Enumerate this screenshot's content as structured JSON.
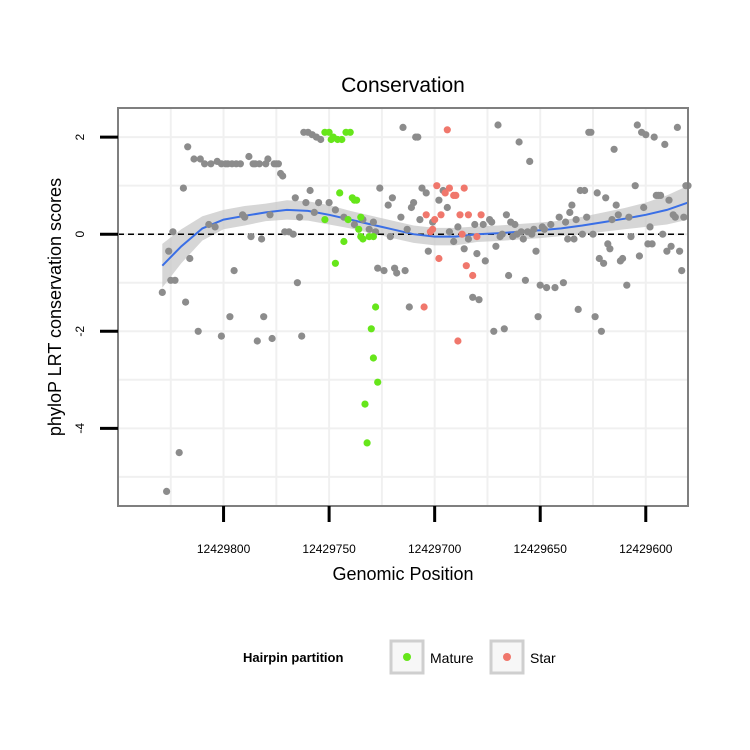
{
  "chart_data": {
    "type": "scatter",
    "title": "Conservation",
    "xlabel": "Genomic Position",
    "ylabel": "phyloP LRT conservation scores",
    "x_reversed": true,
    "xlim": [
      12429580,
      12429850
    ],
    "ylim": [
      -5.6,
      2.6
    ],
    "x_ticks": [
      12429800,
      12429750,
      12429700,
      12429650,
      12429600
    ],
    "x_tick_labels": [
      "12429800",
      "12429750",
      "12429700",
      "12429650",
      "12429600"
    ],
    "y_ticks": [
      -4,
      -2,
      0,
      2
    ],
    "y_tick_labels": [
      "-4",
      "-2",
      "0",
      "2"
    ],
    "reference_line": {
      "y": 0,
      "style": "dashed"
    },
    "colors": {
      "other": "#8c8c8c",
      "Mature": "#66e61a",
      "Star": "#f0776c",
      "smooth": "#3a6fe6",
      "ribbon": "#c8c8c8",
      "panel_border": "#7f7f7f",
      "grid": "#f0f0f0"
    },
    "legend": {
      "title": "Hairpin partition",
      "position": "bottom",
      "entries": [
        {
          "label": "Mature",
          "color": "#66e61a"
        },
        {
          "label": "Star",
          "color": "#f0776c"
        }
      ]
    },
    "series": [
      {
        "name": "Other",
        "points": [
          [
            12429827,
            -5.3
          ],
          [
            12429829,
            -1.2
          ],
          [
            12429826,
            -0.35
          ],
          [
            12429825,
            -0.95
          ],
          [
            12429823,
            -0.95
          ],
          [
            12429824,
            0.05
          ],
          [
            12429821,
            -4.5
          ],
          [
            12429819,
            0.95
          ],
          [
            12429818,
            -1.4
          ],
          [
            12429816,
            -0.5
          ],
          [
            12429817,
            1.8
          ],
          [
            12429814,
            1.55
          ],
          [
            12429812,
            -2.0
          ],
          [
            12429811,
            1.55
          ],
          [
            12429809,
            1.45
          ],
          [
            12429807,
            0.2
          ],
          [
            12429806,
            1.45
          ],
          [
            12429804,
            0.15
          ],
          [
            12429803,
            1.5
          ],
          [
            12429801,
            -2.1
          ],
          [
            12429801,
            1.45
          ],
          [
            12429799,
            1.45
          ],
          [
            12429798,
            1.45
          ],
          [
            12429797,
            -1.7
          ],
          [
            12429796,
            1.45
          ],
          [
            12429795,
            -0.75
          ],
          [
            12429794,
            1.45
          ],
          [
            12429792,
            1.45
          ],
          [
            12429791,
            0.4
          ],
          [
            12429790,
            0.35
          ],
          [
            12429788,
            1.6
          ],
          [
            12429787,
            -0.05
          ],
          [
            12429786,
            1.45
          ],
          [
            12429785,
            1.45
          ],
          [
            12429784,
            -2.2
          ],
          [
            12429783,
            1.45
          ],
          [
            12429782,
            -0.1
          ],
          [
            12429781,
            -1.7
          ],
          [
            12429780,
            1.45
          ],
          [
            12429779,
            1.55
          ],
          [
            12429778,
            0.4
          ],
          [
            12429777,
            -2.15
          ],
          [
            12429776,
            1.45
          ],
          [
            12429775,
            1.45
          ],
          [
            12429774,
            1.45
          ],
          [
            12429773,
            1.25
          ],
          [
            12429772,
            1.2
          ],
          [
            12429771,
            0.05
          ],
          [
            12429769,
            0.05
          ],
          [
            12429767,
            0.0
          ],
          [
            12429766,
            0.75
          ],
          [
            12429765,
            -1.0
          ],
          [
            12429764,
            0.35
          ],
          [
            12429763,
            -2.1
          ],
          [
            12429762,
            2.1
          ],
          [
            12429761,
            0.65
          ],
          [
            12429760,
            2.1
          ],
          [
            12429759,
            0.9
          ],
          [
            12429758,
            2.05
          ],
          [
            12429757,
            0.45
          ],
          [
            12429756,
            2.0
          ],
          [
            12429755,
            0.65
          ],
          [
            12429754,
            1.95
          ],
          [
            12429750,
            0.65
          ],
          [
            12429747,
            0.5
          ],
          [
            12429743,
            0.35
          ],
          [
            12429738,
            0.2
          ],
          [
            12429734,
            0.3
          ],
          [
            12429731,
            0.1
          ],
          [
            12429729,
            0.25
          ],
          [
            12429728,
            0.05
          ],
          [
            12429727,
            -0.7
          ],
          [
            12429726,
            0.95
          ],
          [
            12429724,
            -0.75
          ],
          [
            12429722,
            0.6
          ],
          [
            12429721,
            -0.05
          ],
          [
            12429720,
            0.75
          ],
          [
            12429719,
            -0.7
          ],
          [
            12429718,
            -0.8
          ],
          [
            12429716,
            0.35
          ],
          [
            12429715,
            2.2
          ],
          [
            12429714,
            -0.75
          ],
          [
            12429713,
            0.1
          ],
          [
            12429712,
            -1.5
          ],
          [
            12429711,
            0.55
          ],
          [
            12429710,
            0.65
          ],
          [
            12429709,
            2.0
          ],
          [
            12429708,
            2.0
          ],
          [
            12429707,
            0.3
          ],
          [
            12429706,
            0.95
          ],
          [
            12429704,
            0.85
          ],
          [
            12429703,
            -0.35
          ],
          [
            12429701,
            0.25
          ],
          [
            12429698,
            0.7
          ],
          [
            12429696,
            0.9
          ],
          [
            12429694,
            0.55
          ],
          [
            12429693,
            0.05
          ],
          [
            12429691,
            -0.15
          ],
          [
            12429689,
            0.15
          ],
          [
            12429686,
            -0.3
          ],
          [
            12429684,
            -0.1
          ],
          [
            12429682,
            -1.3
          ],
          [
            12429681,
            0.2
          ],
          [
            12429680,
            -0.4
          ],
          [
            12429679,
            -1.35
          ],
          [
            12429677,
            0.2
          ],
          [
            12429676,
            -0.55
          ],
          [
            12429674,
            0.3
          ],
          [
            12429673,
            0.25
          ],
          [
            12429672,
            -2.0
          ],
          [
            12429671,
            -0.25
          ],
          [
            12429670,
            2.25
          ],
          [
            12429669,
            -0.05
          ],
          [
            12429668,
            0.0
          ],
          [
            12429667,
            -1.95
          ],
          [
            12429666,
            0.4
          ],
          [
            12429665,
            -0.85
          ],
          [
            12429664,
            0.25
          ],
          [
            12429663,
            -0.05
          ],
          [
            12429662,
            0.2
          ],
          [
            12429661,
            0.0
          ],
          [
            12429660,
            1.9
          ],
          [
            12429659,
            0.05
          ],
          [
            12429658,
            -0.1
          ],
          [
            12429657,
            -0.95
          ],
          [
            12429656,
            0.05
          ],
          [
            12429655,
            1.5
          ],
          [
            12429654,
            0.0
          ],
          [
            12429653,
            0.1
          ],
          [
            12429652,
            -0.35
          ],
          [
            12429651,
            -1.7
          ],
          [
            12429650,
            -1.05
          ],
          [
            12429649,
            0.15
          ],
          [
            12429648,
            0.1
          ],
          [
            12429647,
            -1.1
          ],
          [
            12429645,
            0.2
          ],
          [
            12429643,
            -1.1
          ],
          [
            12429641,
            0.35
          ],
          [
            12429639,
            -1.0
          ],
          [
            12429638,
            0.25
          ],
          [
            12429637,
            -0.1
          ],
          [
            12429636,
            0.45
          ],
          [
            12429635,
            0.6
          ],
          [
            12429634,
            -0.1
          ],
          [
            12429633,
            0.3
          ],
          [
            12429632,
            -1.55
          ],
          [
            12429631,
            0.9
          ],
          [
            12429630,
            0.0
          ],
          [
            12429629,
            0.9
          ],
          [
            12429628,
            0.35
          ],
          [
            12429627,
            2.1
          ],
          [
            12429626,
            2.1
          ],
          [
            12429625,
            0.0
          ],
          [
            12429624,
            -1.7
          ],
          [
            12429623,
            0.85
          ],
          [
            12429622,
            -0.5
          ],
          [
            12429621,
            -2.0
          ],
          [
            12429620,
            -0.6
          ],
          [
            12429619,
            0.75
          ],
          [
            12429618,
            -0.2
          ],
          [
            12429617,
            -0.3
          ],
          [
            12429616,
            0.3
          ],
          [
            12429615,
            1.75
          ],
          [
            12429614,
            0.6
          ],
          [
            12429613,
            0.4
          ],
          [
            12429612,
            -0.55
          ],
          [
            12429611,
            -0.5
          ],
          [
            12429609,
            -1.05
          ],
          [
            12429608,
            0.35
          ],
          [
            12429607,
            -0.05
          ],
          [
            12429605,
            1.0
          ],
          [
            12429604,
            2.25
          ],
          [
            12429603,
            -0.45
          ],
          [
            12429602,
            2.1
          ],
          [
            12429601,
            0.55
          ],
          [
            12429600,
            2.05
          ],
          [
            12429599,
            -0.2
          ],
          [
            12429598,
            0.15
          ],
          [
            12429597,
            -0.2
          ],
          [
            12429596,
            2.0
          ],
          [
            12429595,
            0.8
          ],
          [
            12429594,
            0.8
          ],
          [
            12429593,
            0.8
          ],
          [
            12429592,
            0.0
          ],
          [
            12429591,
            1.85
          ],
          [
            12429590,
            -0.35
          ],
          [
            12429589,
            0.7
          ],
          [
            12429588,
            -0.25
          ],
          [
            12429587,
            0.4
          ],
          [
            12429586,
            0.35
          ],
          [
            12429585,
            2.2
          ],
          [
            12429584,
            -0.35
          ],
          [
            12429583,
            -0.75
          ],
          [
            12429582,
            0.35
          ],
          [
            12429581,
            1.0
          ],
          [
            12429580,
            1.0
          ]
        ]
      },
      {
        "name": "Mature",
        "points": [
          [
            12429752,
            0.3
          ],
          [
            12429752,
            2.1
          ],
          [
            12429750,
            2.1
          ],
          [
            12429749,
            1.95
          ],
          [
            12429748,
            2.0
          ],
          [
            12429747,
            -0.6
          ],
          [
            12429746,
            1.95
          ],
          [
            12429745,
            0.85
          ],
          [
            12429744,
            1.95
          ],
          [
            12429743,
            -0.15
          ],
          [
            12429742,
            2.1
          ],
          [
            12429741,
            0.3
          ],
          [
            12429740,
            2.1
          ],
          [
            12429739,
            0.75
          ],
          [
            12429738,
            0.7
          ],
          [
            12429737,
            0.7
          ],
          [
            12429736,
            0.1
          ],
          [
            12429735,
            0.35
          ],
          [
            12429735,
            -0.05
          ],
          [
            12429734,
            -0.1
          ],
          [
            12429733,
            -3.5
          ],
          [
            12429732,
            -4.3
          ],
          [
            12429731,
            -0.05
          ],
          [
            12429730,
            -1.95
          ],
          [
            12429729,
            -0.05
          ],
          [
            12429729,
            -2.55
          ],
          [
            12429728,
            -1.5
          ],
          [
            12429727,
            -3.05
          ]
        ]
      },
      {
        "name": "Star",
        "points": [
          [
            12429705,
            -1.5
          ],
          [
            12429704,
            0.4
          ],
          [
            12429702,
            0.05
          ],
          [
            12429701,
            0.1
          ],
          [
            12429700,
            0.3
          ],
          [
            12429699,
            1.0
          ],
          [
            12429698,
            -0.5
          ],
          [
            12429697,
            0.4
          ],
          [
            12429695,
            0.85
          ],
          [
            12429694,
            2.15
          ],
          [
            12429693,
            0.95
          ],
          [
            12429691,
            0.8
          ],
          [
            12429690,
            0.8
          ],
          [
            12429689,
            -2.2
          ],
          [
            12429688,
            0.4
          ],
          [
            12429687,
            0.0
          ],
          [
            12429686,
            0.95
          ],
          [
            12429685,
            -0.65
          ],
          [
            12429684,
            0.4
          ],
          [
            12429682,
            -0.85
          ],
          [
            12429680,
            -0.05
          ],
          [
            12429678,
            0.4
          ]
        ]
      }
    ],
    "smooth": [
      [
        12429829,
        -0.65,
        0.45
      ],
      [
        12429820,
        -0.25,
        0.35
      ],
      [
        12429810,
        0.12,
        0.25
      ],
      [
        12429800,
        0.3,
        0.2
      ],
      [
        12429790,
        0.38,
        0.2
      ],
      [
        12429780,
        0.45,
        0.18
      ],
      [
        12429770,
        0.5,
        0.2
      ],
      [
        12429760,
        0.48,
        0.2
      ],
      [
        12429750,
        0.4,
        0.2
      ],
      [
        12429740,
        0.3,
        0.18
      ],
      [
        12429730,
        0.2,
        0.18
      ],
      [
        12429720,
        0.1,
        0.18
      ],
      [
        12429710,
        0.0,
        0.18
      ],
      [
        12429700,
        -0.05,
        0.18
      ],
      [
        12429690,
        -0.05,
        0.18
      ],
      [
        12429680,
        0.0,
        0.16
      ],
      [
        12429670,
        0.02,
        0.16
      ],
      [
        12429660,
        0.05,
        0.16
      ],
      [
        12429650,
        0.08,
        0.16
      ],
      [
        12429640,
        0.12,
        0.16
      ],
      [
        12429630,
        0.18,
        0.18
      ],
      [
        12429620,
        0.25,
        0.2
      ],
      [
        12429610,
        0.32,
        0.22
      ],
      [
        12429600,
        0.4,
        0.25
      ],
      [
        12429590,
        0.5,
        0.3
      ],
      [
        12429580,
        0.65,
        0.35
      ]
    ]
  }
}
